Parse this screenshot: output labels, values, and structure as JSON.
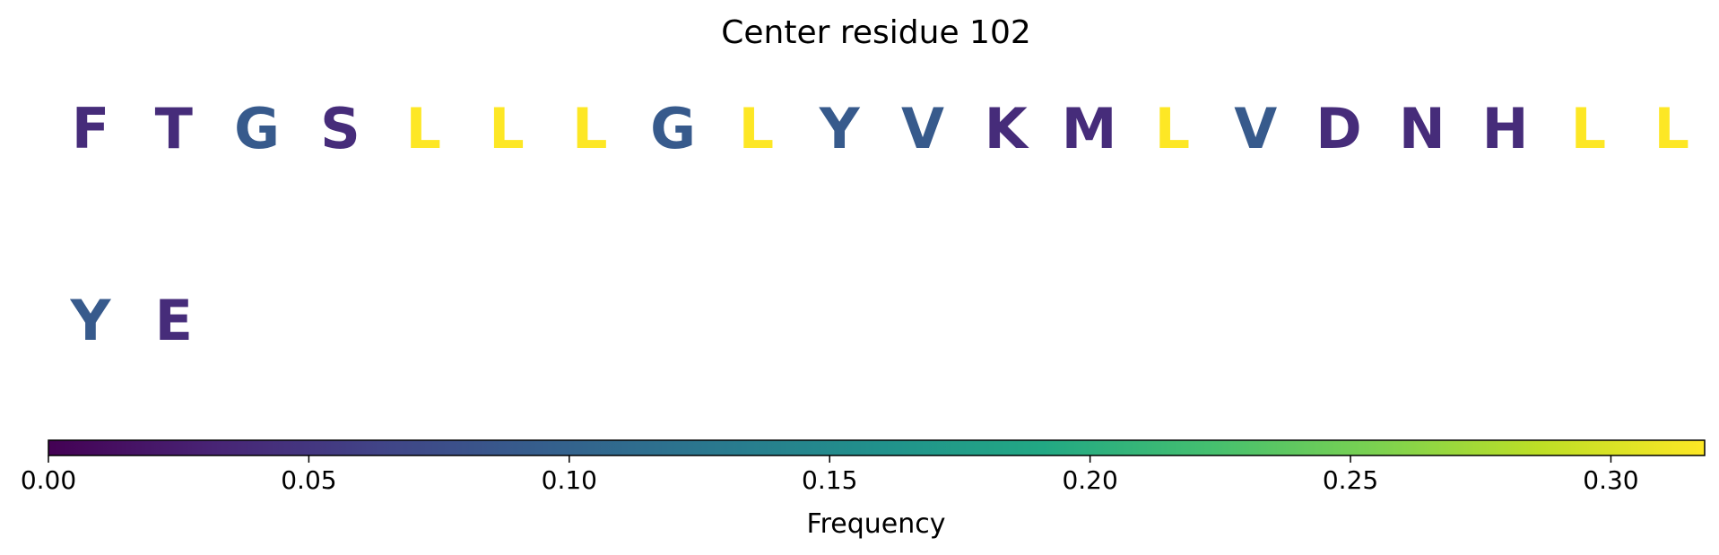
{
  "chart_data": {
    "type": "sequence-logo",
    "title": "Center residue 102",
    "residues": [
      {
        "letter": "F",
        "frequency": 0.04
      },
      {
        "letter": "T",
        "frequency": 0.04
      },
      {
        "letter": "G",
        "frequency": 0.09
      },
      {
        "letter": "S",
        "frequency": 0.04
      },
      {
        "letter": "L",
        "frequency": 0.318
      },
      {
        "letter": "L",
        "frequency": 0.318
      },
      {
        "letter": "L",
        "frequency": 0.318
      },
      {
        "letter": "G",
        "frequency": 0.09
      },
      {
        "letter": "L",
        "frequency": 0.318
      },
      {
        "letter": "Y",
        "frequency": 0.09
      },
      {
        "letter": "V",
        "frequency": 0.09
      },
      {
        "letter": "K",
        "frequency": 0.04
      },
      {
        "letter": "M",
        "frequency": 0.04
      },
      {
        "letter": "L",
        "frequency": 0.318
      },
      {
        "letter": "V",
        "frequency": 0.09
      },
      {
        "letter": "D",
        "frequency": 0.04
      },
      {
        "letter": "N",
        "frequency": 0.04
      },
      {
        "letter": "H",
        "frequency": 0.04
      },
      {
        "letter": "L",
        "frequency": 0.318
      },
      {
        "letter": "L",
        "frequency": 0.318
      },
      {
        "letter": "Y",
        "frequency": 0.09
      },
      {
        "letter": "E",
        "frequency": 0.04
      }
    ],
    "colorbar": {
      "label": "Frequency",
      "colormap": "viridis",
      "range": [
        0,
        0.318
      ],
      "ticks": [
        "0.00",
        "0.05",
        "0.10",
        "0.15",
        "0.20",
        "0.25",
        "0.30"
      ],
      "tick_values": [
        0,
        0.05,
        0.1,
        0.15,
        0.2,
        0.25,
        0.3
      ]
    }
  }
}
